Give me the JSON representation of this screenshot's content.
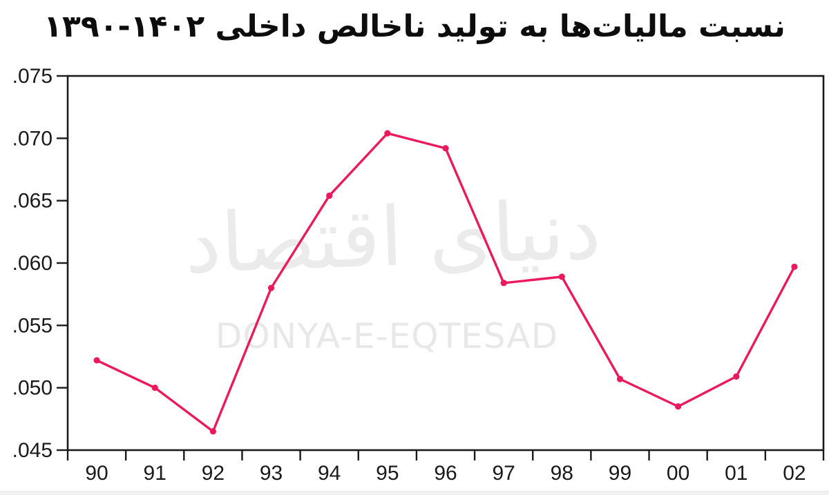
{
  "title": "نسبت مالیات‌ها به تولید ناخالص داخلی ‪۱۳۹۰-۱۴۰۲‬",
  "watermark": {
    "farsi": "دنیای اقتصاد",
    "latin": "DONYA-E-EQTESAD"
  },
  "colors": {
    "line": "#EC1A5C",
    "axis": "#1a1a1a",
    "title": "#0d0d0d",
    "watermark": "#e9e9e9"
  },
  "chart_data": {
    "type": "line",
    "title": "نسبت مالیات‌ها به تولید ناخالص داخلی ۱۳۹۰-۱۴۰۲",
    "title_translation": "Ratio of taxes to GDP, 1390-1402",
    "x": [
      "90",
      "91",
      "92",
      "93",
      "94",
      "95",
      "96",
      "97",
      "98",
      "99",
      "00",
      "01",
      "02"
    ],
    "values": [
      0.0522,
      0.05,
      0.0465,
      0.058,
      0.0654,
      0.0704,
      0.0692,
      0.0584,
      0.0589,
      0.0507,
      0.0485,
      0.0509,
      0.0597
    ],
    "xlabel": "",
    "ylabel": "",
    "ylim": [
      0.045,
      0.075
    ],
    "ytick_step": 0.005,
    "ytick_labels": [
      ".045",
      ".050",
      ".055",
      ".060",
      ".065",
      ".070",
      ".075"
    ],
    "grid": false,
    "legend": "none",
    "marker": "circle",
    "line_color": "#EC1A5C"
  }
}
